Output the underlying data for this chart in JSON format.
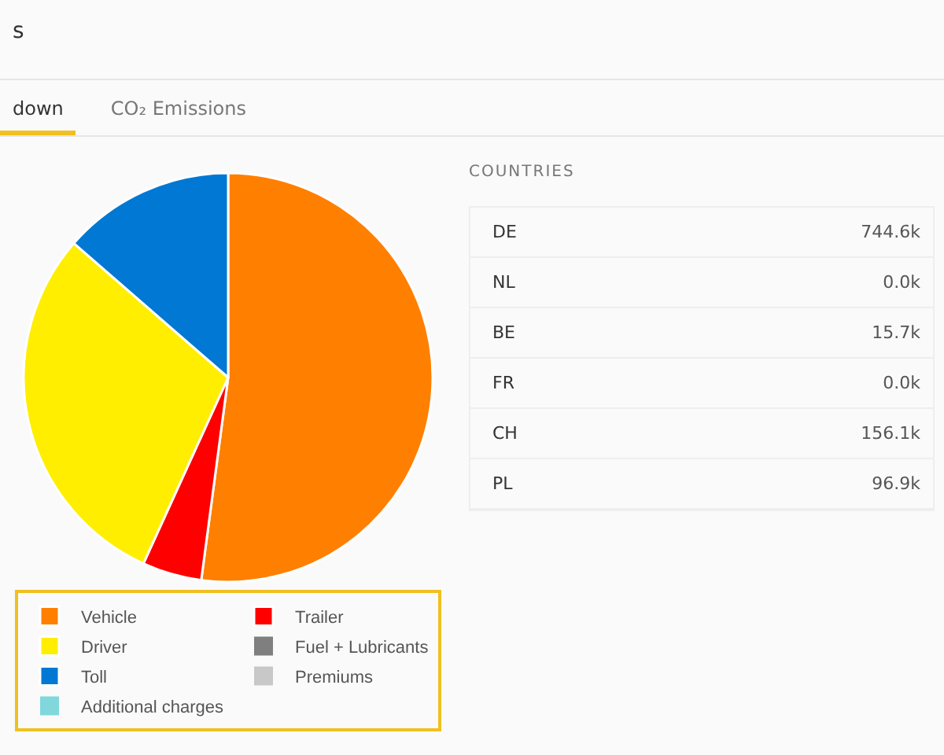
{
  "chart_data": [
    {
      "type": "other",
      "title": "s",
      "categories": [
        "down",
        "CO₂ Emissions"
      ]
    },
    {
      "type": "pie",
      "categories": [
        "Vehicle",
        "Trailer",
        "Driver",
        "Fuel + Lubricants",
        "Toll",
        "Premiums",
        "Additional charges"
      ],
      "values": [
        52.1,
        4.7,
        29.6,
        0,
        13.6,
        0,
        0
      ],
      "colors": [
        "#ff7f00",
        "#ff0000",
        "#ffee00",
        "#7f7f7f",
        "#0078d4",
        "#c8c8c8",
        "#80d8dc"
      ],
      "legend": "bottom"
    },
    {
      "type": "other",
      "title": "COUNTRIES",
      "categories": [
        "DE",
        "NL",
        "BE",
        "FR",
        "CH",
        "PL"
      ],
      "value_labels": [
        "744.6k",
        "0.0k",
        "15.7k",
        "0.0k",
        "156.1k",
        "96.9k"
      ]
    }
  ]
}
